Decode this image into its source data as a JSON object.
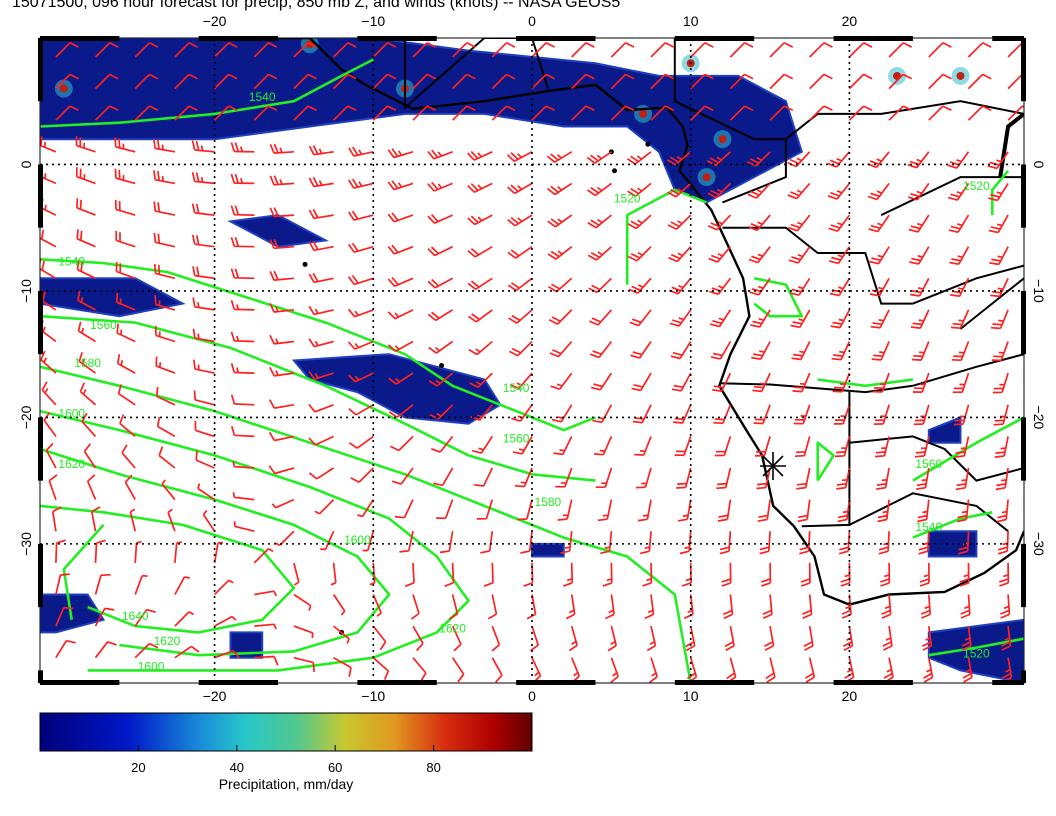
{
  "title": "15071500, 096 hour forecast for precip, 850 mb Z, and winds (knots) -- NASA GEOS5",
  "map": {
    "lon_range": [
      -31,
      31
    ],
    "lat_range": [
      -41,
      10
    ],
    "lon_ticks": [
      {
        "value": -20,
        "label": "−20"
      },
      {
        "value": -10,
        "label": "−10"
      },
      {
        "value": 0,
        "label": "0"
      },
      {
        "value": 10,
        "label": "10"
      },
      {
        "value": 20,
        "label": "20"
      }
    ],
    "lat_ticks": [
      {
        "value": 0,
        "label": "0"
      },
      {
        "value": -10,
        "label": "−10"
      },
      {
        "value": -20,
        "label": "−20"
      },
      {
        "value": -30,
        "label": "−30"
      }
    ],
    "colors": {
      "precip_dark": "#0a1a8a",
      "precip_blue": "#2040c0",
      "precip_cyan": "#30c0d0",
      "contour": "#22ee22",
      "barb": "#ff2020",
      "coast": "#000000",
      "grid": "#000000"
    },
    "contour_labels": [
      {
        "text": "1540",
        "lon": -17,
        "lat": 5
      },
      {
        "text": "1540",
        "lon": -29,
        "lat": -8
      },
      {
        "text": "1560",
        "lon": -27,
        "lat": -13
      },
      {
        "text": "1580",
        "lon": -28,
        "lat": -16
      },
      {
        "text": "1600",
        "lon": -29,
        "lat": -20
      },
      {
        "text": "1620",
        "lon": -29,
        "lat": -24
      },
      {
        "text": "1540",
        "lon": -1,
        "lat": -18
      },
      {
        "text": "1560",
        "lon": -1,
        "lat": -22
      },
      {
        "text": "1580",
        "lon": 1,
        "lat": -27
      },
      {
        "text": "1600",
        "lon": -11,
        "lat": -30
      },
      {
        "text": "1620",
        "lon": -5,
        "lat": -37
      },
      {
        "text": "1640",
        "lon": -25,
        "lat": -36
      },
      {
        "text": "1620",
        "lon": -23,
        "lat": -38
      },
      {
        "text": "1600",
        "lon": -24,
        "lat": -40
      },
      {
        "text": "1520",
        "lon": 6,
        "lat": -3
      },
      {
        "text": "1520",
        "lon": 28,
        "lat": -2
      },
      {
        "text": "1560",
        "lon": 25,
        "lat": -24
      },
      {
        "text": "1540",
        "lon": 25,
        "lat": -29
      },
      {
        "text": "1520",
        "lon": 28,
        "lat": -39
      }
    ]
  },
  "colorbar": {
    "label": "Precipitation, mm/day",
    "ticks": [
      {
        "value": 20,
        "label": "20"
      },
      {
        "value": 40,
        "label": "40"
      },
      {
        "value": 60,
        "label": "60"
      },
      {
        "value": 80,
        "label": "80"
      }
    ],
    "range": [
      0,
      100
    ]
  }
}
